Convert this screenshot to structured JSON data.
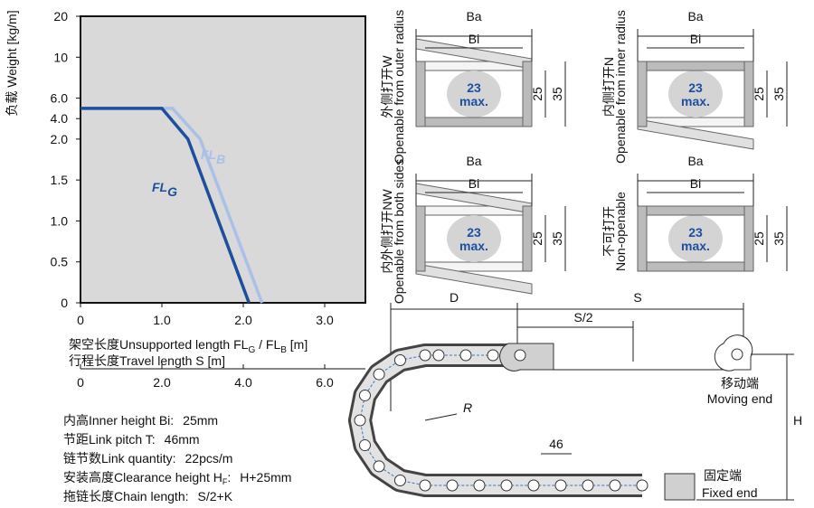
{
  "chart_data": {
    "type": "line",
    "y_label": "负载 Weight [kg/m]",
    "x_label": [
      "架空长度Unsupported length FL",
      "G",
      " / FL",
      "B",
      " [m]"
    ],
    "x2_label": "行程长度Travel length S [m]",
    "xlim": [
      0,
      3.5
    ],
    "xticks": [
      0,
      {
        "value": 1,
        "label": "1.0"
      },
      {
        "value": 2,
        "label": "2.0"
      },
      {
        "value": 3,
        "label": "3.0"
      }
    ],
    "x2lim": [
      0,
      7
    ],
    "x2ticks": [
      0,
      {
        "value": 2,
        "label": "2.0"
      },
      {
        "value": 4,
        "label": "4.0"
      },
      {
        "value": 6,
        "label": "6.0"
      }
    ],
    "ylim": [
      0,
      20
    ],
    "yticks": [
      0,
      0.5,
      {
        "value": 1,
        "label": "1.0"
      },
      1.5,
      {
        "value": 2,
        "label": "2.0"
      },
      {
        "value": 4,
        "label": "4.0"
      },
      {
        "value": 6,
        "label": "6.0"
      },
      10,
      20
    ],
    "series": [
      {
        "name": "FL",
        "name_sub": "G",
        "color": "#1d4f9e",
        "x": [
          0,
          1,
          1.32,
          2.07
        ],
        "values": [
          5,
          5,
          2,
          0
        ]
      },
      {
        "name": "FL",
        "name_sub": "B",
        "color": "#a9c0e8",
        "x": [
          0,
          1.13,
          1.47,
          2.23
        ],
        "values": [
          5,
          5,
          2,
          0
        ]
      }
    ]
  },
  "specs": [
    {
      "text": "内高Inner height Bi:",
      "value": "25mm"
    },
    {
      "text": "节距Link pitch T:",
      "value": "46mm"
    },
    {
      "text": "链节数Link quantity:",
      "value": "22pcs/m"
    },
    {
      "text": "安装高度Clearance height H",
      "sub": "F",
      "tail": ":",
      "value": "H+25mm"
    },
    {
      "text": "拖链长度Chain length:",
      "value": "S/2+K"
    }
  ],
  "diagram": {
    "dims": {
      "ba": "Ba",
      "bi": "Bi",
      "capacity": "23",
      "capacity_unit": "max.",
      "h_inner": "25",
      "h_outer": "35"
    },
    "panels": [
      {
        "cn": "外侧打开W",
        "en": "Openable from outer radius"
      },
      {
        "cn": "内侧打开N",
        "en": "Openable from inner radius"
      },
      {
        "cn": "内外侧打开NW",
        "en": "Openable from both sides"
      },
      {
        "cn": "不可打开",
        "en": "Non-openable"
      }
    ]
  },
  "chain": {
    "d": "D",
    "s": "S",
    "half_s": "S/2",
    "radius": "R",
    "pitch": "46",
    "height": "H",
    "moving_cn": "移动端",
    "moving_en": "Moving end",
    "fixed_cn": "固定端",
    "fixed_en": "Fixed end"
  }
}
